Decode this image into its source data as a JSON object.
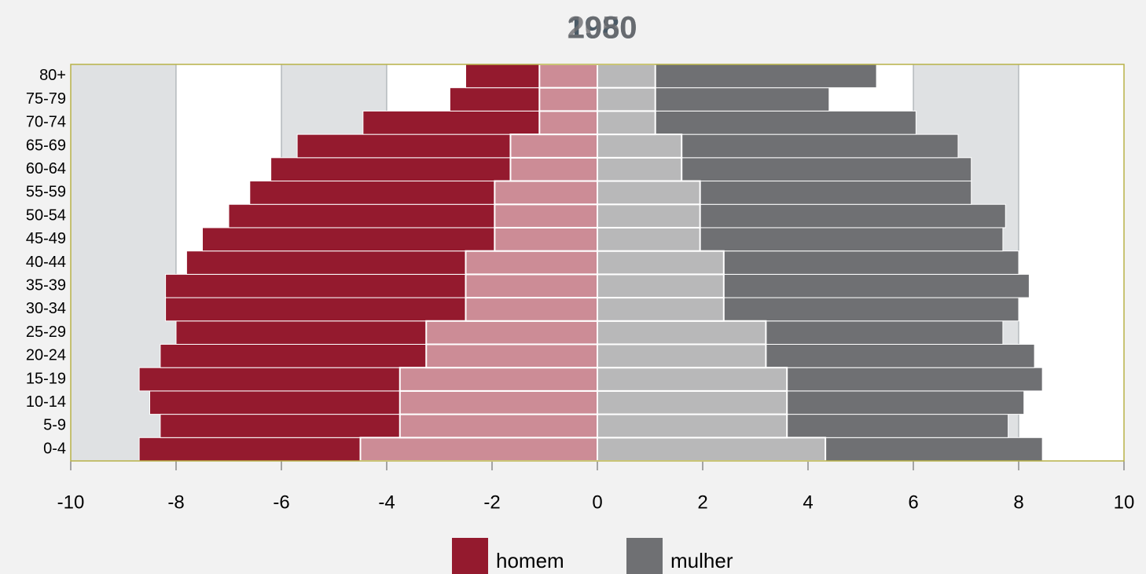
{
  "chart_data": {
    "type": "pyramid",
    "titles": [
      "1980",
      "2050"
    ],
    "categories": [
      "0-4",
      "5-9",
      "10-14",
      "15-19",
      "20-24",
      "25-29",
      "30-34",
      "35-39",
      "40-44",
      "45-49",
      "50-54",
      "55-59",
      "60-64",
      "65-69",
      "70-74",
      "75-79",
      "80+"
    ],
    "series": [
      {
        "name": "homem",
        "color": "#941a2e",
        "values": [
          -8.7,
          -8.3,
          -8.5,
          -8.7,
          -8.3,
          -8.0,
          -8.2,
          -8.2,
          -7.8,
          -7.5,
          -7.0,
          -6.6,
          -6.2,
          -5.7,
          -4.45,
          -2.8,
          -2.5
        ]
      },
      {
        "name": "mulher",
        "color": "#6f7073",
        "values": [
          8.45,
          7.8,
          8.1,
          8.45,
          8.3,
          7.7,
          8.0,
          8.2,
          8.0,
          7.7,
          7.75,
          7.1,
          7.1,
          6.85,
          6.05,
          4.4,
          5.3
        ]
      },
      {
        "color": "#cc8c96",
        "values": [
          -4.5,
          -3.75,
          -3.75,
          -3.75,
          -3.25,
          -3.25,
          -2.5,
          -2.5,
          -2.5,
          -1.95,
          -1.95,
          -1.95,
          -1.65,
          -1.65,
          -1.1,
          -1.1,
          -1.1
        ]
      },
      {
        "color": "#b8b8b9",
        "values": [
          4.33,
          3.6,
          3.6,
          3.6,
          3.2,
          3.2,
          2.4,
          2.4,
          2.4,
          1.95,
          1.95,
          1.95,
          1.6,
          1.6,
          1.1,
          1.1,
          1.1
        ]
      }
    ],
    "xlim": [
      -10,
      10
    ],
    "xticks": [
      -10,
      -8,
      -6,
      -4,
      -2,
      0,
      2,
      4,
      6,
      8,
      10
    ]
  }
}
